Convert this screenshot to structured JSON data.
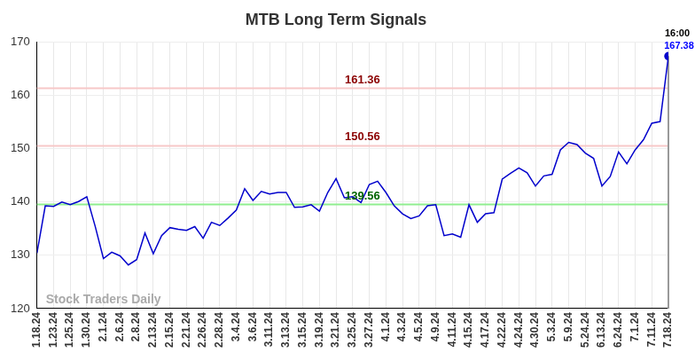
{
  "chart_data": {
    "type": "line",
    "title": "MTB Long Term Signals",
    "categories": [
      "1.18.24",
      null,
      "1.23.24",
      null,
      "1.25.24",
      null,
      "1.30.24",
      null,
      "2.1.24",
      null,
      "2.6.24",
      null,
      "2.8.24",
      null,
      "2.13.24",
      null,
      "2.15.24",
      null,
      "2.21.24",
      null,
      "2.26.24",
      null,
      "2.28.24",
      null,
      "3.4.24",
      null,
      "3.6.24",
      null,
      "3.11.24",
      null,
      "3.13.24",
      null,
      "3.15.24",
      null,
      "3.19.24",
      null,
      "3.21.24",
      null,
      "3.25.24",
      null,
      "3.27.24",
      null,
      "4.1.24",
      null,
      "4.3.24",
      null,
      "4.5.24",
      null,
      "4.9.24",
      null,
      "4.11.24",
      null,
      "4.15.24",
      null,
      "4.17.24",
      null,
      "4.22.24",
      null,
      "4.24.24",
      null,
      "4.30.24",
      null,
      "5.3.24",
      null,
      "5.9.24",
      null,
      "5.24.24",
      null,
      "6.13.24",
      null,
      "6.24.24",
      null,
      "7.1.24",
      null,
      "7.11.24",
      null,
      "7.18.24"
    ],
    "series": [
      {
        "name": "MTB",
        "color": "#0000cc",
        "marker": "last",
        "values": [
          130.4,
          139.3,
          139.2,
          140.0,
          139.5,
          140.1,
          141.0,
          135.5,
          129.4,
          130.6,
          129.9,
          128.2,
          129.2,
          134.2,
          130.3,
          133.7,
          135.2,
          134.9,
          134.7,
          135.4,
          133.2,
          136.2,
          135.6,
          137.0,
          138.5,
          142.5,
          140.3,
          142.0,
          141.5,
          141.8,
          141.8,
          139.0,
          139.1,
          139.5,
          138.3,
          141.8,
          144.4,
          140.8,
          141.0,
          139.9,
          143.3,
          143.9,
          141.8,
          139.3,
          137.8,
          136.9,
          137.4,
          139.3,
          139.5,
          133.7,
          134.0,
          133.4,
          139.5,
          136.2,
          137.8,
          138.0,
          144.3,
          145.4,
          146.4,
          145.5,
          143.0,
          144.9,
          145.2,
          149.8,
          151.2,
          150.8,
          149.2,
          148.2,
          143.0,
          144.8,
          149.4,
          147.2,
          149.8,
          151.7,
          154.8,
          155.1,
          167.38
        ]
      }
    ],
    "ylim": [
      120,
      170
    ],
    "yticks": [
      120,
      130,
      140,
      150,
      160,
      170
    ],
    "grid": true,
    "lines": [
      {
        "value": 161.36,
        "label": "161.36",
        "color": "#f7c8c8",
        "label_color": "#8b0000"
      },
      {
        "value": 150.56,
        "label": "150.56",
        "color": "#f7c8c8",
        "label_color": "#8b0000"
      },
      {
        "value": 139.56,
        "label": "139.56",
        "color": "#90ee90",
        "label_color": "#006400"
      }
    ],
    "end_label": {
      "time": "16:00",
      "value": "167.38"
    },
    "watermark": "Stock Traders Daily"
  }
}
